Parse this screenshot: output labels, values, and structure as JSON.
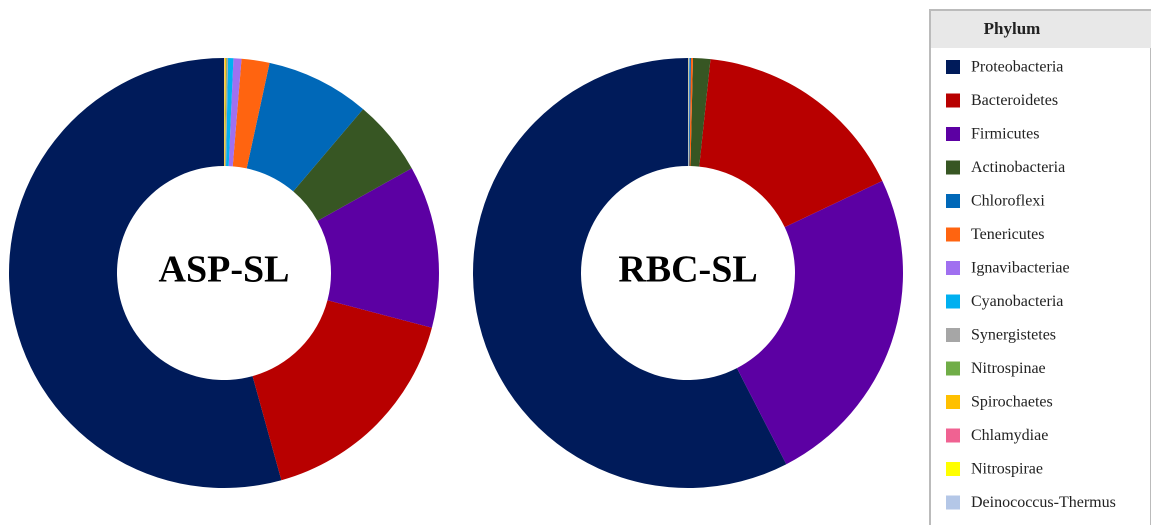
{
  "chart_data": [
    {
      "type": "pie",
      "center_label": "ASP-SL",
      "categories": [
        "Proteobacteria",
        "Bacteroidetes",
        "Firmicutes",
        "Actinobacteria",
        "Chloroflexi",
        "Tenericutes",
        "Ignavibacteriae",
        "Cyanobacteria",
        "Synergistetes",
        "Nitrospinae",
        "Spirochaetes",
        "Chlamydiae",
        "Nitrospirae",
        "Deinococcus-Thermus"
      ],
      "values": [
        54.3,
        16.6,
        12.2,
        5.7,
        7.8,
        2.1,
        0.6,
        0.4,
        0.1,
        0.05,
        0.1,
        0.02,
        0.02,
        0.01
      ]
    },
    {
      "type": "pie",
      "center_label": "RBC-SL",
      "categories": [
        "Proteobacteria",
        "Firmicutes",
        "Bacteroidetes",
        "Actinobacteria",
        "Tenericutes",
        "Chloroflexi",
        "Ignavibacteriae",
        "Cyanobacteria",
        "Synergistetes",
        "Nitrospinae",
        "Spirochaetes",
        "Chlamydiae",
        "Nitrospirae",
        "Deinococcus-Thermus"
      ],
      "values": [
        57.6,
        24.5,
        16.3,
        1.3,
        0.15,
        0.1,
        0.02,
        0.02,
        0.03,
        0.01,
        0.01,
        0.01,
        0.01,
        0.01
      ]
    }
  ],
  "legend": {
    "title": "Phylum",
    "entries": [
      {
        "name": "Proteobacteria",
        "color": "#001b5a"
      },
      {
        "name": "Bacteroidetes",
        "color": "#b80000"
      },
      {
        "name": "Firmicutes",
        "color": "#5c00a3"
      },
      {
        "name": "Actinobacteria",
        "color": "#375623"
      },
      {
        "name": "Chloroflexi",
        "color": "#0068b8"
      },
      {
        "name": "Tenericutes",
        "color": "#ff6410"
      },
      {
        "name": "Ignavibacteriae",
        "color": "#a070f0"
      },
      {
        "name": "Cyanobacteria",
        "color": "#00b0f0"
      },
      {
        "name": "Synergistetes",
        "color": "#a6a6a6"
      },
      {
        "name": "Nitrospinae",
        "color": "#70ad47"
      },
      {
        "name": "Spirochaetes",
        "color": "#ffc000"
      },
      {
        "name": "Chlamydiae",
        "color": "#f06292"
      },
      {
        "name": "Nitrospirae",
        "color": "#ffff00"
      },
      {
        "name": "Deinococcus-Thermus",
        "color": "#b4c7e7"
      }
    ]
  }
}
